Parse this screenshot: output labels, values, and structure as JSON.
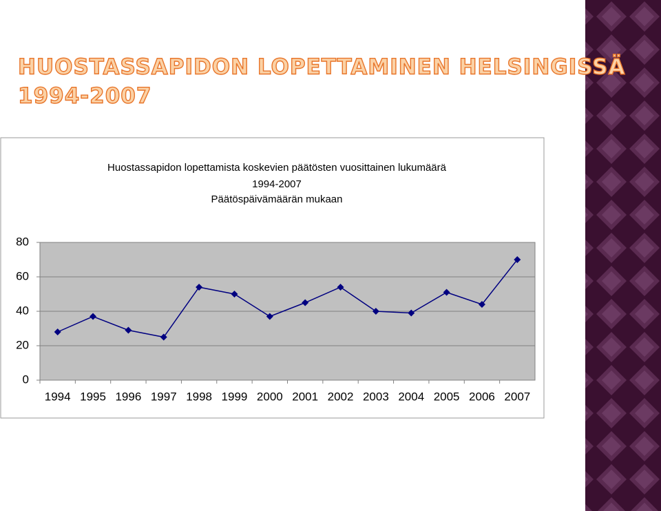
{
  "slide_title": [
    "HUOSTASSAPIDON LOPETTAMINEN HELSINGISSÄ",
    "1994-2007"
  ],
  "chart_data": {
    "type": "line",
    "title_lines": [
      "Huostassapidon lopettamista koskevien päätösten vuosittainen lukumäärä",
      "1994-2007",
      "Päätöspäivämäärän mukaan"
    ],
    "categories": [
      "1994",
      "1995",
      "1996",
      "1997",
      "1998",
      "1999",
      "2000",
      "2001",
      "2002",
      "2003",
      "2004",
      "2005",
      "2006",
      "2007"
    ],
    "values": [
      28,
      37,
      29,
      25,
      54,
      50,
      37,
      45,
      54,
      40,
      39,
      51,
      44,
      70
    ],
    "color": "#000080",
    "ylim": [
      0,
      80
    ],
    "yticks": [
      0,
      20,
      40,
      60,
      80
    ],
    "grid": true
  }
}
